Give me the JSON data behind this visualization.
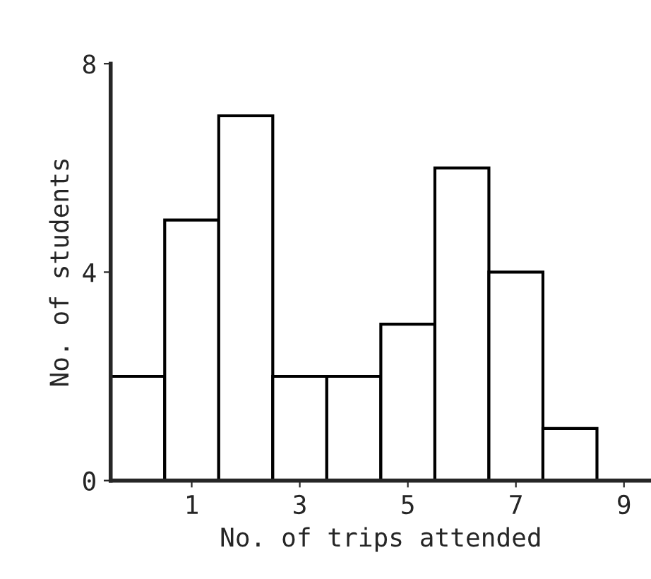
{
  "chart_data": {
    "type": "histogram",
    "xlabel": "No. of trips attended",
    "ylabel": "No. of students",
    "bins": [
      -0.5,
      0.5,
      1.5,
      2.5,
      3.5,
      4.5,
      5.5,
      6.5,
      7.5,
      8.5
    ],
    "values": [
      2,
      5,
      7,
      2,
      2,
      3,
      6,
      4,
      1
    ],
    "color": "#ffffff",
    "xlim": [
      -0.5,
      9.5
    ],
    "xticks": [
      1,
      3,
      5,
      7,
      9
    ],
    "ylim": [
      0,
      8
    ],
    "yticks": [
      0,
      4,
      8
    ],
    "grid": false
  }
}
